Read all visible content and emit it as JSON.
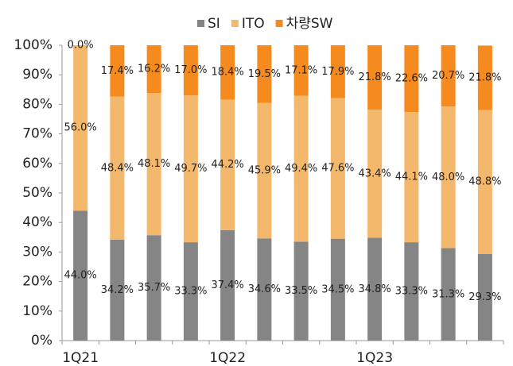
{
  "chart_data": {
    "type": "stacked_bar",
    "categories": [
      "1Q21",
      null,
      null,
      null,
      "1Q22",
      null,
      null,
      null,
      "1Q23",
      null,
      null,
      null
    ],
    "series": [
      {
        "name": "SI",
        "color": "#858585",
        "values": [
          44.0,
          34.2,
          35.7,
          33.3,
          37.4,
          34.6,
          33.5,
          34.5,
          34.8,
          33.3,
          31.3,
          29.3
        ],
        "value_labels": [
          "44.0%",
          "34.2%",
          "35.7%",
          "33.3%",
          "37.4%",
          "34.6%",
          "33.5%",
          "34.5%",
          "34.8%",
          "33.3%",
          "31.3%",
          "29.3%"
        ]
      },
      {
        "name": "ITO",
        "color": "#f4b86c",
        "values": [
          56.0,
          48.4,
          48.1,
          49.7,
          44.2,
          45.9,
          49.4,
          47.6,
          43.4,
          44.1,
          48.0,
          48.8
        ],
        "value_labels": [
          "56.0%",
          "48.4%",
          "48.1%",
          "49.7%",
          "44.2%",
          "45.9%",
          "49.4%",
          "47.6%",
          "43.4%",
          "44.1%",
          "48.0%",
          "48.8%"
        ]
      },
      {
        "name": "차량SW",
        "color": "#f58a1f",
        "values": [
          0.0,
          17.4,
          16.2,
          17.0,
          18.4,
          19.5,
          17.1,
          17.9,
          21.8,
          22.6,
          20.7,
          21.8
        ],
        "value_labels": [
          "0.0%",
          "17.4%",
          "16.2%",
          "17.0%",
          "18.4%",
          "19.5%",
          "17.1%",
          "17.9%",
          "21.8%",
          "22.6%",
          "20.7%",
          "21.8%"
        ]
      }
    ],
    "ylim": [
      0,
      100
    ],
    "yticks": [
      {
        "value": 0,
        "label": "0%"
      },
      {
        "value": 10,
        "label": "10%"
      },
      {
        "value": 20,
        "label": "20%"
      },
      {
        "value": 30,
        "label": "30%"
      },
      {
        "value": 40,
        "label": "40%"
      },
      {
        "value": 50,
        "label": "50%"
      },
      {
        "value": 60,
        "label": "60%"
      },
      {
        "value": 70,
        "label": "70%"
      },
      {
        "value": 80,
        "label": "80%"
      },
      {
        "value": 90,
        "label": "90%"
      },
      {
        "value": 100,
        "label": "100%"
      }
    ],
    "legend": "top"
  }
}
